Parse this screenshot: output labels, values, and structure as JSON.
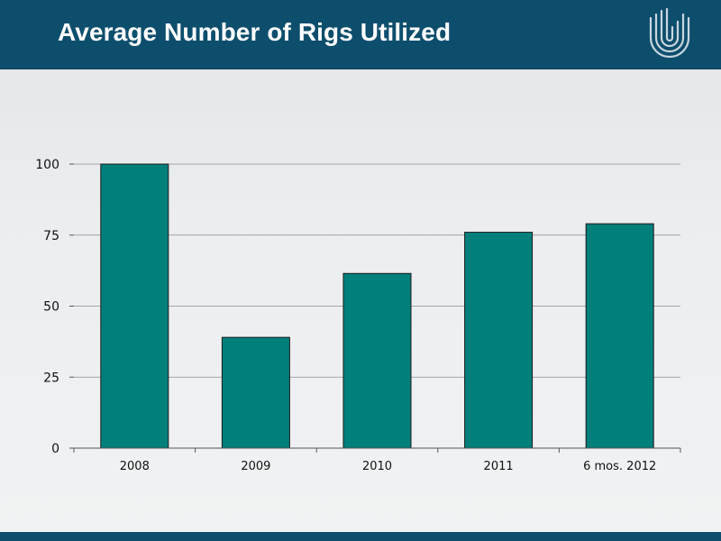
{
  "header": {
    "title": "Average Number of Rigs Utilized",
    "background": "#0d4e6d"
  },
  "logo": {
    "icon": "company-logo-icon"
  },
  "chart_data": {
    "type": "bar",
    "categories": [
      "2008",
      "2009",
      "2010",
      "2011",
      "6 mos. 2012"
    ],
    "values": [
      100,
      39,
      61.5,
      76,
      79
    ],
    "ylim": [
      0,
      100
    ],
    "yticks": [
      0,
      25,
      50,
      75,
      100
    ],
    "grid": true,
    "bar_color": "#007f7b",
    "legend": "none"
  }
}
